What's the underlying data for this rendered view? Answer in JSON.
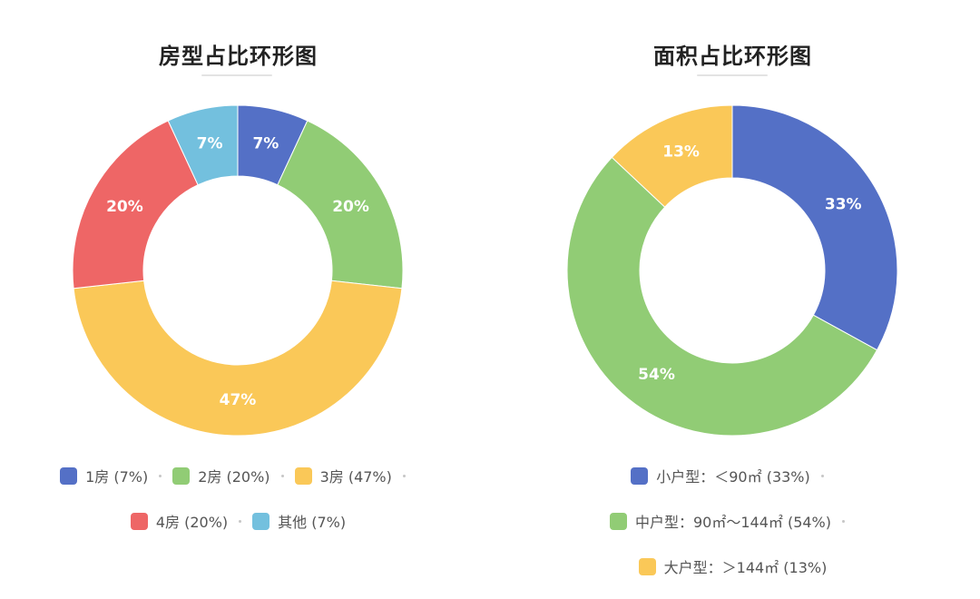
{
  "chart_data": [
    {
      "type": "pie",
      "title": "房型占比环形图",
      "categories": [
        "1房",
        "2房",
        "3房",
        "4房",
        "其他"
      ],
      "values": [
        7,
        20,
        47,
        20,
        7
      ],
      "labels": [
        "7%",
        "20%",
        "47%",
        "20%",
        "7%"
      ],
      "legend": [
        "1房 (7%)",
        "2房 (20%)",
        "3房 (47%)",
        "4房 (20%)",
        "其他 (7%)"
      ],
      "colors": [
        "#5470c6",
        "#91cc75",
        "#fac858",
        "#ee6666",
        "#73c0de"
      ],
      "legend_placement": "bottom"
    },
    {
      "type": "pie",
      "title": "面积占比环形图",
      "categories": [
        "小户型",
        "中户型",
        "大户型"
      ],
      "values": [
        33,
        54,
        13
      ],
      "labels": [
        "33%",
        "54%",
        "13%"
      ],
      "legend": [
        "小户型：＜90㎡ (33%)",
        "中户型：90㎡～144㎡ (54%)",
        "大户型：＞144㎡ (13%)"
      ],
      "colors": [
        "#5470c6",
        "#91cc75",
        "#fac858"
      ],
      "legend_placement": "bottom"
    }
  ]
}
